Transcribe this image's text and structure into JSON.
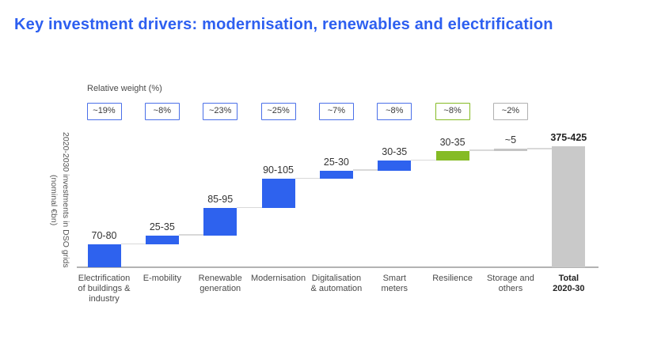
{
  "title": "Key investment drivers: modernisation, renewables and electrification",
  "chart_data": {
    "type": "waterfall",
    "unit": "EUR bn (nominal)",
    "weight_row_label": "Relative weight (%)",
    "ylabel": "2020-2030 investments in DSO grids (nominal €bn)",
    "ylabel_line1": "2020-2030 investments in DSO grids",
    "ylabel_line2": "(nominal €bn)",
    "ylim": [
      0,
      425
    ],
    "grid": false,
    "colors": {
      "driver": "#2e62ee",
      "resilience": "#85bb25",
      "storage": "#c4c4c4",
      "total": "#c9c9c9",
      "connector": "#d9d9d9",
      "axis": "#b3b3b3",
      "title": "#2d5ff0",
      "weight_blue": "#4a6fe8",
      "weight_green": "#85bb25",
      "weight_gray": "#b0b0b0"
    },
    "items": [
      {
        "category": "Electrification of buildings & industry",
        "label_lines": [
          "Electrification",
          "of buildings &",
          "industry"
        ],
        "value_label": "70-80",
        "value_range": [
          70,
          80
        ],
        "value_mid": 75,
        "weight": "~19%",
        "color_key": "driver",
        "weight_style": "blue",
        "is_total": false
      },
      {
        "category": "E-mobility",
        "label_lines": [
          "E-mobility"
        ],
        "value_label": "25-35",
        "value_range": [
          25,
          35
        ],
        "value_mid": 30,
        "weight": "~8%",
        "color_key": "driver",
        "weight_style": "blue",
        "is_total": false
      },
      {
        "category": "Renewable generation",
        "label_lines": [
          "Renewable",
          "generation"
        ],
        "value_label": "85-95",
        "value_range": [
          85,
          95
        ],
        "value_mid": 90,
        "weight": "~23%",
        "color_key": "driver",
        "weight_style": "blue",
        "is_total": false
      },
      {
        "category": "Modernisation",
        "label_lines": [
          "Modernisation"
        ],
        "value_label": "90-105",
        "value_range": [
          90,
          105
        ],
        "value_mid": 97.5,
        "weight": "~25%",
        "color_key": "driver",
        "weight_style": "blue",
        "is_total": false
      },
      {
        "category": "Digitalisation & automation",
        "label_lines": [
          "Digitalisation",
          "& automation"
        ],
        "value_label": "25-30",
        "value_range": [
          25,
          30
        ],
        "value_mid": 27.5,
        "weight": "~7%",
        "color_key": "driver",
        "weight_style": "blue",
        "is_total": false
      },
      {
        "category": "Smart meters",
        "label_lines": [
          "Smart",
          "meters"
        ],
        "value_label": "30-35",
        "value_range": [
          30,
          35
        ],
        "value_mid": 32.5,
        "weight": "~8%",
        "color_key": "driver",
        "weight_style": "blue",
        "is_total": false
      },
      {
        "category": "Resilience",
        "label_lines": [
          "Resilience"
        ],
        "value_label": "30-35",
        "value_range": [
          30,
          35
        ],
        "value_mid": 32.5,
        "weight": "~8%",
        "color_key": "resilience",
        "weight_style": "green",
        "is_total": false
      },
      {
        "category": "Storage and others",
        "label_lines": [
          "Storage and",
          "others"
        ],
        "value_label": "~5",
        "value_range": [
          5,
          5
        ],
        "value_mid": 5,
        "weight": "~2%",
        "color_key": "storage",
        "weight_style": "gray",
        "is_total": false
      },
      {
        "category": "Total 2020-30",
        "label_lines": [
          "Total",
          "2020-30"
        ],
        "value_label": "375-425",
        "value_range": [
          375,
          425
        ],
        "value_mid": 400,
        "weight": null,
        "color_key": "total",
        "weight_style": null,
        "is_total": true
      }
    ]
  }
}
